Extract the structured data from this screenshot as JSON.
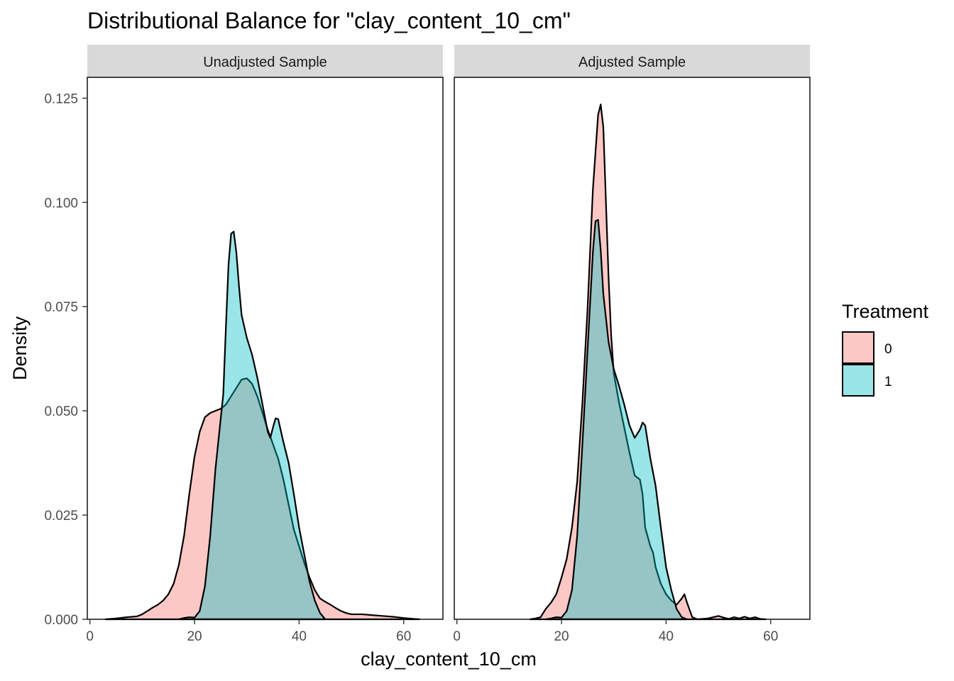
{
  "title": "Distributional Balance for \"clay_content_10_cm\"",
  "chart_data": {
    "type": "area",
    "title": "Distributional Balance for \"clay_content_10_cm\"",
    "xlabel": "clay_content_10_cm",
    "ylabel": "Density",
    "xlim": [
      -0.5,
      67.5
    ],
    "ylim": [
      0,
      0.13
    ],
    "x_ticks": [
      0,
      20,
      40,
      60
    ],
    "y_ticks": [
      0.0,
      0.025,
      0.05,
      0.075,
      0.1,
      0.125
    ],
    "x_tick_labels": [
      "0",
      "20",
      "40",
      "60"
    ],
    "y_tick_labels": [
      "0.000",
      "0.025",
      "0.050",
      "0.075",
      "0.100",
      "0.125"
    ],
    "grid": false,
    "legend": {
      "title": "Treatment",
      "position": "right",
      "entries": [
        {
          "label": "0",
          "color": "#F8766D"
        },
        {
          "label": "1",
          "color": "#00BFC4"
        }
      ]
    },
    "panels": [
      {
        "strip_label": "Unadjusted Sample",
        "series": [
          {
            "name": "0",
            "color": "#F8766D",
            "points": [
              [
                3,
                0
              ],
              [
                5,
                0.0002
              ],
              [
                7,
                0.0005
              ],
              [
                9,
                0.0007
              ],
              [
                10,
                0.0012
              ],
              [
                11,
                0.002
              ],
              [
                12,
                0.0028
              ],
              [
                13,
                0.0035
              ],
              [
                14,
                0.0045
              ],
              [
                15,
                0.006
              ],
              [
                16,
                0.0085
              ],
              [
                17,
                0.013
              ],
              [
                18,
                0.02
              ],
              [
                19,
                0.03
              ],
              [
                20,
                0.039
              ],
              [
                21,
                0.045
              ],
              [
                22,
                0.0485
              ],
              [
                23,
                0.0495
              ],
              [
                24,
                0.05
              ],
              [
                25,
                0.0505
              ],
              [
                26,
                0.0515
              ],
              [
                27,
                0.0535
              ],
              [
                28,
                0.0555
              ],
              [
                29,
                0.0575
              ],
              [
                30,
                0.0578
              ],
              [
                31,
                0.0565
              ],
              [
                32,
                0.0535
              ],
              [
                33,
                0.0495
              ],
              [
                34,
                0.0455
              ],
              [
                35,
                0.042
              ],
              [
                36,
                0.0385
              ],
              [
                37,
                0.0335
              ],
              [
                38,
                0.0275
              ],
              [
                39,
                0.0215
              ],
              [
                40,
                0.0175
              ],
              [
                41,
                0.0135
              ],
              [
                42,
                0.01
              ],
              [
                43,
                0.007
              ],
              [
                44,
                0.005
              ],
              [
                45,
                0.0042
              ],
              [
                46,
                0.0035
              ],
              [
                47,
                0.0027
              ],
              [
                48,
                0.002
              ],
              [
                49,
                0.0015
              ],
              [
                50,
                0.0012
              ],
              [
                52,
                0.0012
              ],
              [
                54,
                0.001
              ],
              [
                56,
                0.0008
              ],
              [
                58,
                0.0006
              ],
              [
                60,
                0.0003
              ],
              [
                62,
                0.0001
              ],
              [
                63,
                0
              ]
            ]
          },
          {
            "name": "1",
            "color": "#00BFC4",
            "points": [
              [
                17,
                0
              ],
              [
                18,
                0.0003
              ],
              [
                19,
                0.0005
              ],
              [
                20,
                0.0004
              ],
              [
                21,
                0.002
              ],
              [
                22,
                0.008
              ],
              [
                23,
                0.02
              ],
              [
                24,
                0.036
              ],
              [
                25,
                0.048
              ],
              [
                25.5,
                0.054
              ],
              [
                26,
                0.07
              ],
              [
                26.5,
                0.085
              ],
              [
                27,
                0.0925
              ],
              [
                27.5,
                0.093
              ],
              [
                28,
                0.088
              ],
              [
                28.5,
                0.08
              ],
              [
                29,
                0.073
              ],
              [
                30,
                0.0675
              ],
              [
                31,
                0.0635
              ],
              [
                32,
                0.058
              ],
              [
                33,
                0.0515
              ],
              [
                34,
                0.045
              ],
              [
                34.5,
                0.0435
              ],
              [
                35,
                0.046
              ],
              [
                35.5,
                0.0482
              ],
              [
                36,
                0.048
              ],
              [
                37,
                0.0425
              ],
              [
                38,
                0.0375
              ],
              [
                39,
                0.03
              ],
              [
                40,
                0.022
              ],
              [
                41,
                0.0155
              ],
              [
                42,
                0.009
              ],
              [
                43,
                0.0045
              ],
              [
                44,
                0.0015
              ],
              [
                45,
                0
              ]
            ]
          }
        ]
      },
      {
        "strip_label": "Adjusted Sample",
        "series": [
          {
            "name": "0",
            "color": "#F8766D",
            "points": [
              [
                14,
                0
              ],
              [
                15,
                0.0002
              ],
              [
                16,
                0.0005
              ],
              [
                17,
                0.0025
              ],
              [
                18,
                0.004
              ],
              [
                19,
                0.006
              ],
              [
                20,
                0.01
              ],
              [
                21,
                0.0145
              ],
              [
                22,
                0.022
              ],
              [
                23,
                0.033
              ],
              [
                24,
                0.052
              ],
              [
                25,
                0.075
              ],
              [
                26,
                0.103
              ],
              [
                27,
                0.121
              ],
              [
                27.5,
                0.1235
              ],
              [
                28,
                0.118
              ],
              [
                28.5,
                0.1
              ],
              [
                29,
                0.082
              ],
              [
                29.5,
                0.068
              ],
              [
                30,
                0.059
              ],
              [
                31,
                0.052
              ],
              [
                32,
                0.046
              ],
              [
                33,
                0.04
              ],
              [
                34,
                0.0345
              ],
              [
                35,
                0.0335
              ],
              [
                35.5,
                0.03
              ],
              [
                36,
                0.022
              ],
              [
                37,
                0.0175
              ],
              [
                37.5,
                0.016
              ],
              [
                38,
                0.0125
              ],
              [
                39,
                0.0085
              ],
              [
                40,
                0.006
              ],
              [
                41,
                0.0045
              ],
              [
                42,
                0.0035
              ],
              [
                43,
                0.005
              ],
              [
                43.5,
                0.006
              ],
              [
                44,
                0.004
              ],
              [
                45,
                0.0005
              ],
              [
                46,
                0
              ],
              [
                48,
                0.0002
              ],
              [
                50,
                0.0008
              ],
              [
                51,
                0.0004
              ],
              [
                52,
                0.0001
              ],
              [
                53,
                0.0005
              ],
              [
                54,
                0.0002
              ],
              [
                55,
                0.0006
              ],
              [
                56,
                0.0002
              ],
              [
                57,
                0.0005
              ],
              [
                58,
                0.0001
              ],
              [
                59,
                0
              ]
            ]
          },
          {
            "name": "1",
            "color": "#00BFC4",
            "points": [
              [
                17,
                0
              ],
              [
                18,
                0.0002
              ],
              [
                19,
                0.0005
              ],
              [
                20,
                0.0004
              ],
              [
                21,
                0.002
              ],
              [
                22,
                0.007
              ],
              [
                23,
                0.02
              ],
              [
                24,
                0.042
              ],
              [
                25,
                0.065
              ],
              [
                26,
                0.088
              ],
              [
                26.5,
                0.0955
              ],
              [
                27,
                0.0958
              ],
              [
                27.5,
                0.0885
              ],
              [
                28,
                0.078
              ],
              [
                29,
                0.0665
              ],
              [
                30,
                0.06
              ],
              [
                31,
                0.056
              ],
              [
                32,
                0.0515
              ],
              [
                33,
                0.0465
              ],
              [
                34,
                0.0435
              ],
              [
                35,
                0.0455
              ],
              [
                35.5,
                0.0472
              ],
              [
                36,
                0.0465
              ],
              [
                37,
                0.0385
              ],
              [
                38,
                0.032
              ],
              [
                39,
                0.022
              ],
              [
                40,
                0.0125
              ],
              [
                41,
                0.007
              ],
              [
                42,
                0.0025
              ],
              [
                43,
                0.0005
              ],
              [
                44,
                0
              ]
            ]
          }
        ]
      }
    ]
  }
}
